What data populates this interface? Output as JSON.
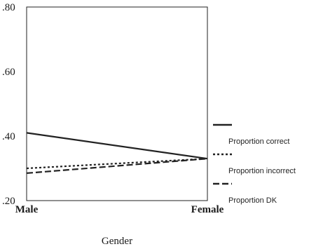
{
  "chart_data": {
    "type": "line",
    "categories": [
      "Male",
      "Female"
    ],
    "xlabel": "Gender",
    "ylabel": "",
    "ylim": [
      0.2,
      0.8
    ],
    "y_ticks": [
      {
        "value": 0.2,
        "label": ".20"
      },
      {
        "value": 0.4,
        "label": ".40"
      },
      {
        "value": 0.6,
        "label": ".60"
      },
      {
        "value": 0.8,
        "label": ".80"
      }
    ],
    "grid": false,
    "legend_position": "right",
    "series": [
      {
        "name": "Proportion correct",
        "values": [
          0.41,
          0.33
        ],
        "style": "solid",
        "color": "#222222"
      },
      {
        "name": "Proportion incorrect",
        "values": [
          0.3,
          0.33
        ],
        "style": "dotted",
        "color": "#222222"
      },
      {
        "name": "Proportion DK",
        "values": [
          0.285,
          0.33
        ],
        "style": "dashed",
        "color": "#222222"
      }
    ]
  }
}
